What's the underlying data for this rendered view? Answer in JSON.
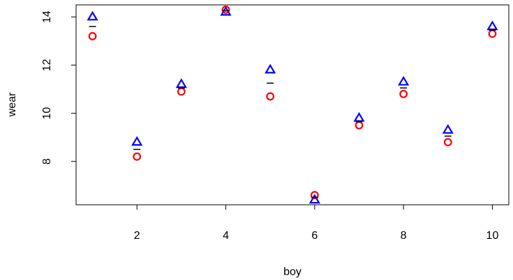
{
  "chart_data": {
    "type": "scatter",
    "title": "",
    "xlabel": "boy",
    "ylabel": "wear",
    "xlim": [
      0.63,
      10.37
    ],
    "ylim": [
      6.2,
      14.5
    ],
    "grid": false,
    "legend": "none",
    "x_ticks": [
      2,
      4,
      6,
      8,
      10
    ],
    "y_ticks": [
      8,
      10,
      12,
      14
    ],
    "series": [
      {
        "marker": "triangle",
        "color": "#0000ff",
        "x": [
          1,
          2,
          3,
          4,
          5,
          6,
          7,
          8,
          9,
          10
        ],
        "y": [
          14.0,
          8.8,
          11.2,
          14.2,
          11.8,
          6.4,
          9.8,
          11.3,
          9.3,
          13.6
        ]
      },
      {
        "marker": "circle",
        "color": "#ff0000",
        "x": [
          1,
          2,
          3,
          4,
          5,
          6,
          7,
          8,
          9,
          10
        ],
        "y": [
          13.2,
          8.2,
          10.9,
          14.3,
          10.7,
          6.6,
          9.5,
          10.8,
          8.8,
          13.3
        ]
      },
      {
        "marker": "dash",
        "color": "#000000",
        "x": [
          1,
          2,
          3,
          4,
          5,
          6,
          7,
          8,
          9,
          10
        ],
        "y": [
          13.6,
          8.5,
          11.05,
          14.25,
          11.25,
          6.5,
          9.65,
          11.05,
          9.05,
          13.45
        ]
      }
    ]
  }
}
